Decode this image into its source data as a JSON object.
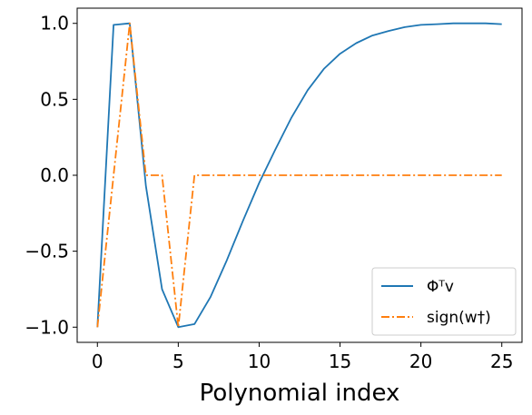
{
  "chart_data": {
    "type": "line",
    "xlabel": "Polynomial index",
    "ylabel": "",
    "xlim": [
      -1.25,
      26.25
    ],
    "ylim": [
      -1.1,
      1.1
    ],
    "xticks": [
      0,
      5,
      10,
      15,
      20,
      25
    ],
    "xtick_labels": [
      "0",
      "5",
      "10",
      "15",
      "20",
      "25"
    ],
    "yticks": [
      -1.0,
      -0.5,
      0.0,
      0.5,
      1.0
    ],
    "ytick_labels": [
      "−1.0",
      "−0.5",
      "0.0",
      "0.5",
      "1.0"
    ],
    "grid": false,
    "legend_position": "lower-right",
    "series": [
      {
        "legend_label": "Φᵀv",
        "color": "#1f77b4",
        "line_style": "solid",
        "x": [
          0,
          1,
          2,
          3,
          4,
          5,
          6,
          7,
          8,
          9,
          10,
          11,
          12,
          13,
          14,
          15,
          16,
          17,
          18,
          19,
          20,
          21,
          22,
          23,
          24,
          25
        ],
        "values": [
          -1.0,
          0.99,
          1.0,
          -0.07,
          -0.75,
          -1.0,
          -0.98,
          -0.8,
          -0.56,
          -0.3,
          -0.05,
          0.17,
          0.38,
          0.56,
          0.7,
          0.8,
          0.87,
          0.92,
          0.95,
          0.975,
          0.99,
          0.995,
          1.0,
          1.0,
          1.0,
          0.995
        ]
      },
      {
        "legend_label": "sign(w†)",
        "color": "#ff7f0e",
        "line_style": "dashdot",
        "x": [
          0,
          1,
          2,
          3,
          4,
          5,
          6,
          7,
          8,
          9,
          10,
          11,
          12,
          13,
          14,
          15,
          16,
          17,
          18,
          19,
          20,
          21,
          22,
          23,
          24,
          25
        ],
        "values": [
          -1,
          0,
          1,
          0,
          0,
          -1,
          0,
          0,
          0,
          0,
          0,
          0,
          0,
          0,
          0,
          0,
          0,
          0,
          0,
          0,
          0,
          0,
          0,
          0,
          0,
          0
        ]
      }
    ]
  }
}
